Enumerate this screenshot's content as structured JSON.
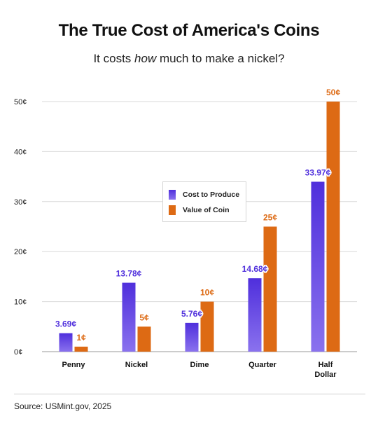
{
  "header": {
    "title": "The True Cost of America's Coins",
    "subtitle_prefix": "It costs ",
    "subtitle_emph": "how",
    "subtitle_suffix": " much to make a nickel?"
  },
  "footer": {
    "source": "Source: USMint.gov, 2025"
  },
  "colors": {
    "cost_top": "#4f2fdc",
    "cost_bottom": "#8a72ee",
    "value": "#dd6a14",
    "grid": "#d9d9d9",
    "axis": "#999999"
  },
  "chart_data": {
    "type": "bar",
    "categories": [
      "Penny",
      "Nickel",
      "Dime",
      "Quarter",
      "Half Dollar"
    ],
    "category_lines": [
      [
        "Penny"
      ],
      [
        "Nickel"
      ],
      [
        "Dime"
      ],
      [
        "Quarter"
      ],
      [
        "Half",
        "Dollar"
      ]
    ],
    "series": [
      {
        "name": "Cost to Produce",
        "values": [
          3.69,
          13.78,
          5.76,
          14.68,
          33.97
        ],
        "labels": [
          "3.69¢",
          "13.78¢",
          "5.76¢",
          "14.68¢",
          "33.97¢"
        ]
      },
      {
        "name": "Value of Coin",
        "values": [
          1,
          5,
          10,
          25,
          50
        ],
        "labels": [
          "1¢",
          "5¢",
          "10¢",
          "25¢",
          "50¢"
        ]
      }
    ],
    "yticks": [
      0,
      10,
      20,
      30,
      40,
      50
    ],
    "ytick_labels": [
      "0¢",
      "10¢",
      "20¢",
      "30¢",
      "40¢",
      "50¢"
    ],
    "ylim": [
      0,
      50
    ],
    "grid": true,
    "legend_position": "center"
  }
}
